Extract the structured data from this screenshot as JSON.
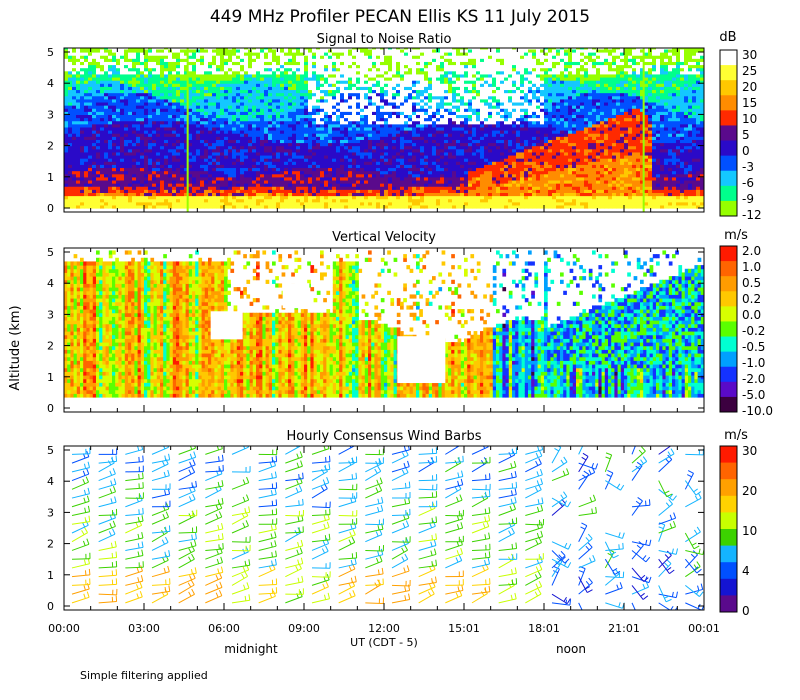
{
  "chart_data": {
    "type": "heatmap",
    "title": "449 MHz Profiler PECAN Ellis KS 11 July 2015",
    "ylabel": "Altitude (km)",
    "xlabel": "UT (CDT - 5)",
    "footnote": "Simple filtering applied",
    "time_labels": [
      "00:00",
      "03:00",
      "06:00",
      "09:00",
      "12:00",
      "15:01",
      "18:01",
      "21:01",
      "00:01"
    ],
    "time_hours": [
      0,
      3,
      6,
      9,
      12,
      15,
      18,
      21,
      24
    ],
    "xlim": [
      0,
      24
    ],
    "local_markers": [
      {
        "label": "midnight",
        "hour": 6
      },
      {
        "label": "noon",
        "hour": 18
      }
    ],
    "panels": [
      {
        "title": "Signal to Noise Ratio",
        "unit": "dB",
        "ylim": [
          0,
          5
        ],
        "y_ticks": [
          "0",
          "1",
          "2",
          "3",
          "4",
          "5"
        ],
        "colorbar_labels": [
          "30",
          "25",
          "20",
          "15",
          "10",
          "5",
          "0",
          "-3",
          "-6",
          "-9",
          "-12"
        ],
        "colorbar_colors": [
          "#ffffff",
          "#ffff33",
          "#ffc800",
          "#ff8c00",
          "#ff2a00",
          "#5a0a8c",
          "#2a0ac8",
          "#0050ff",
          "#14c8ff",
          "#00ff8c",
          "#96ff00"
        ]
      },
      {
        "title": "Vertical Velocity",
        "unit": "m/s",
        "ylim": [
          0,
          5
        ],
        "y_ticks": [
          "0",
          "1",
          "2",
          "3",
          "4",
          "5"
        ],
        "colorbar_labels": [
          "2.0",
          "1.0",
          "0.5",
          "0.2",
          "0.0",
          "-0.2",
          "-0.5",
          "-1.0",
          "-2.0",
          "-5.0",
          "-10.0"
        ],
        "colorbar_colors": [
          "#ff1a00",
          "#ff6400",
          "#ff9c00",
          "#ffc800",
          "#d7ff00",
          "#5aff00",
          "#00ffd2",
          "#00a0ff",
          "#1432ff",
          "#5a0ac8",
          "#3c0040"
        ]
      },
      {
        "title": "Hourly Consensus Wind Barbs",
        "unit": "m/s",
        "ylim": [
          0,
          5
        ],
        "y_ticks": [
          "0",
          "1",
          "2",
          "3",
          "4",
          "5"
        ],
        "colorbar_labels": [
          "30",
          "20",
          "10",
          "4",
          "0"
        ],
        "colorbar_colors": [
          "#ff1a00",
          "#ff6400",
          "#ffa000",
          "#ffd200",
          "#c8ff00",
          "#3cd200",
          "#14b4ff",
          "#0050ff",
          "#1414d2",
          "#5a0a8c"
        ]
      }
    ]
  }
}
